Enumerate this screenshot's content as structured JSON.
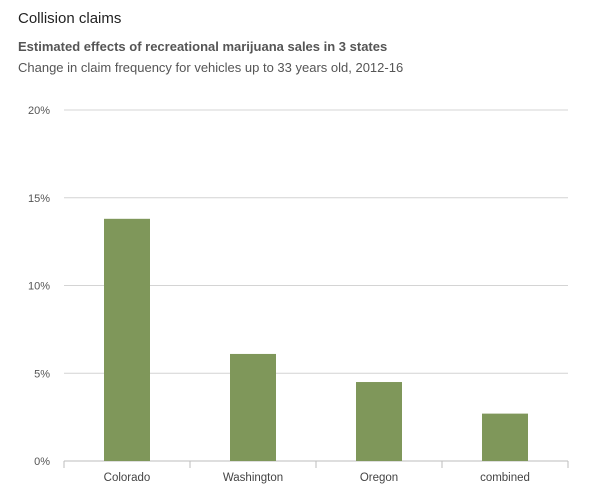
{
  "header": {
    "title": "Collision claims",
    "subtitle": "Estimated effects of recreational marijuana sales in 3 states",
    "description": "Change in claim frequency for vehicles up to 33 years old, 2012-16"
  },
  "colors": {
    "bar": "#7f975a",
    "grid": "#d4d4d4",
    "axis": "#bdbdbd"
  },
  "chart_data": {
    "type": "bar",
    "categories": [
      "Colorado",
      "Washington",
      "Oregon",
      "combined"
    ],
    "values": [
      13.8,
      6.1,
      4.5,
      2.7
    ],
    "ylim": [
      0,
      20
    ],
    "yticks": [
      0,
      5,
      10,
      15,
      20
    ],
    "ytick_labels": [
      "0%",
      "5%",
      "10%",
      "15%",
      "20%"
    ],
    "grid": true
  }
}
